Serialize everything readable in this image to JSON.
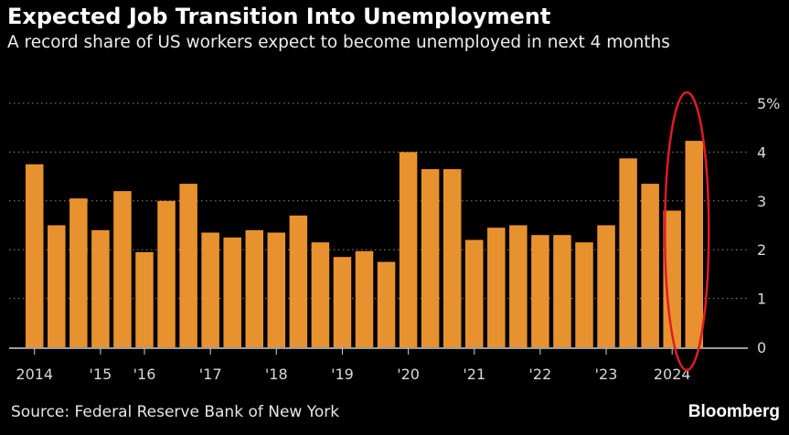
{
  "chart_data": {
    "type": "bar",
    "title": "Expected Job Transition Into Unemployment",
    "subtitle": "A record share of US workers expect to become unemployed in next 4 months",
    "ylabel": "%",
    "ylim": [
      0,
      5
    ],
    "yticks": [
      "0",
      "1",
      "2",
      "3",
      "4",
      "5%"
    ],
    "xticks": [
      "2014",
      "'15",
      "'16",
      "'17",
      "'18",
      "'19",
      "'20",
      "'21",
      "'22",
      "'23",
      "2024"
    ],
    "xtick_positions": [
      0,
      3,
      5,
      8,
      11,
      14,
      17,
      20,
      23,
      26,
      29
    ],
    "values": [
      3.75,
      2.5,
      3.05,
      2.4,
      3.2,
      1.95,
      3.0,
      3.35,
      2.35,
      2.25,
      2.4,
      2.35,
      2.7,
      2.15,
      1.85,
      1.97,
      1.75,
      4.0,
      3.65,
      3.65,
      2.2,
      2.45,
      2.5,
      2.3,
      2.3,
      2.15,
      2.5,
      3.87,
      3.35,
      2.8,
      4.23
    ],
    "highlight_index": 30,
    "bar_color": "#E8922F",
    "grid": true,
    "source": "Source: Federal Reserve Bank of New York",
    "brand": "Bloomberg"
  }
}
